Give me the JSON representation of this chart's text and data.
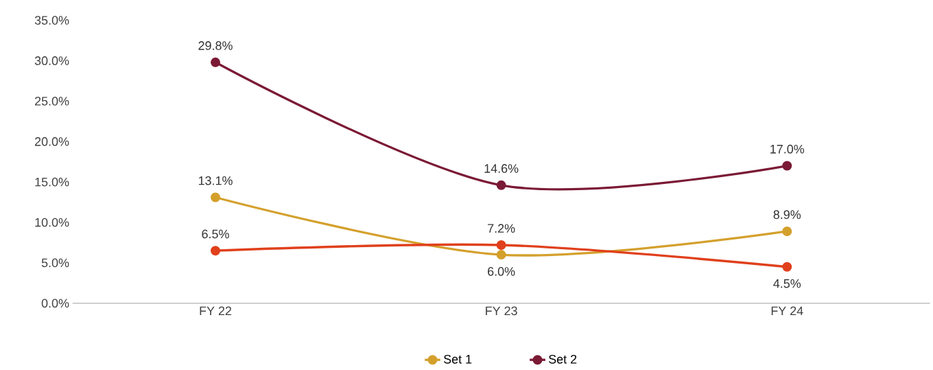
{
  "chart_data": {
    "type": "line",
    "categories": [
      "FY 22",
      "FY 23",
      "FY 24"
    ],
    "series": [
      {
        "name": "Set 1",
        "color": "#d4a02c",
        "values": [
          13.1,
          6.0,
          8.9
        ],
        "value_labels": [
          "13.1%",
          "6.0%",
          "8.9%"
        ]
      },
      {
        "name": "Set 2",
        "color": "#7b1a35",
        "values": [
          29.8,
          14.6,
          17.0
        ],
        "value_labels": [
          "29.8%",
          "14.6%",
          "17.0%"
        ]
      },
      {
        "color": "#e0401c",
        "values": [
          6.5,
          7.2,
          4.5
        ],
        "value_labels": [
          "6.5%",
          "7.2%",
          "4.5%"
        ]
      }
    ],
    "ylim": [
      0,
      35
    ],
    "yticks": [
      {
        "value": 0,
        "label": "0.0%"
      },
      {
        "value": 5,
        "label": "5.0%"
      },
      {
        "value": 10,
        "label": "10.0%"
      },
      {
        "value": 15,
        "label": "15.0%"
      },
      {
        "value": 20,
        "label": "20.0%"
      },
      {
        "value": 25,
        "label": "25.0%"
      },
      {
        "value": 30,
        "label": "30.0%"
      },
      {
        "value": 35,
        "label": "35.0%"
      }
    ],
    "marker": "circle",
    "legend": "bottom",
    "grid": false
  }
}
